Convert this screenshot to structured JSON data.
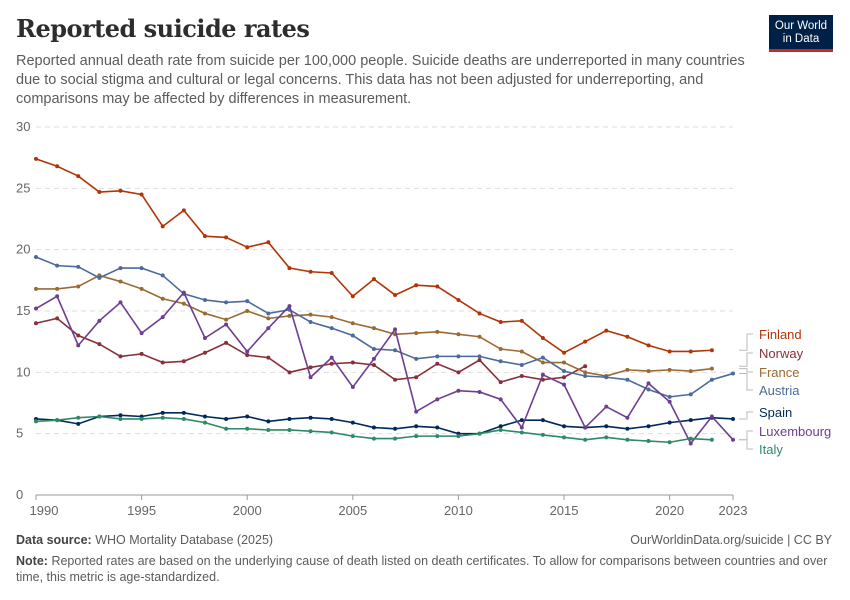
{
  "header": {
    "title": "Reported suicide rates",
    "subtitle": "Reported annual death rate from suicide per 100,000 people. Suicide deaths are underreported in many countries due to social stigma and cultural or legal concerns. This data has not been adjusted for underreporting, and comparisons may be affected by differences in measurement.",
    "logo_text": "Our World in Data"
  },
  "footer": {
    "source_label": "Data source:",
    "source": "WHO Mortality Database (2025)",
    "url": "OurWorldinData.org/suicide | CC BY",
    "note_label": "Note:",
    "note": "Reported rates are based on the underlying cause of death listed on death certificates. To allow for comparisons between countries and over time, this metric is age-standardized."
  },
  "chart_data": {
    "type": "line",
    "xlim": [
      1990,
      2023
    ],
    "ylim": [
      0,
      30
    ],
    "x_ticks": [
      "1990",
      "1995",
      "2000",
      "2005",
      "2010",
      "2015",
      "2020",
      "2023"
    ],
    "y_ticks": [
      "0",
      "5",
      "10",
      "15",
      "20",
      "25",
      "30"
    ],
    "grid": "horizontal dashed",
    "legend": "right, direct labels",
    "series": [
      {
        "name": "Finland",
        "color": "#B13507",
        "start": 1990,
        "values": [
          27.4,
          26.8,
          26.0,
          24.7,
          24.8,
          24.5,
          21.9,
          23.2,
          21.1,
          21.0,
          20.2,
          20.6,
          18.5,
          18.2,
          18.1,
          16.2,
          17.6,
          16.3,
          17.1,
          17.0,
          15.9,
          14.8,
          14.1,
          14.2,
          12.8,
          11.6,
          12.5,
          13.4,
          12.9,
          12.2,
          11.7,
          11.7,
          11.8
        ]
      },
      {
        "name": "Norway",
        "color": "#883039",
        "start": 1990,
        "values": [
          14.0,
          14.4,
          13.0,
          12.3,
          11.3,
          11.5,
          10.8,
          10.9,
          11.6,
          12.4,
          11.4,
          11.2,
          10.0,
          10.4,
          10.7,
          10.8,
          10.6,
          9.4,
          9.6,
          10.7,
          10.0,
          11.0,
          9.2,
          9.7,
          9.4,
          9.6,
          10.5
        ]
      },
      {
        "name": "France",
        "color": "#9A6A33",
        "start": 1990,
        "values": [
          16.8,
          16.8,
          17.0,
          17.9,
          17.4,
          16.8,
          16.0,
          15.6,
          14.8,
          14.3,
          15.0,
          14.4,
          14.6,
          14.7,
          14.5,
          14.0,
          13.6,
          13.1,
          13.2,
          13.3,
          13.1,
          12.9,
          11.9,
          11.7,
          10.8,
          10.8,
          10.0,
          9.7,
          10.2,
          10.1,
          10.2,
          10.1,
          10.3
        ]
      },
      {
        "name": "Austria",
        "color": "#4C6A9C",
        "start": 1990,
        "values": [
          19.4,
          18.7,
          18.6,
          17.7,
          18.5,
          18.5,
          17.9,
          16.4,
          15.9,
          15.7,
          15.8,
          14.8,
          15.1,
          14.1,
          13.6,
          13.0,
          11.9,
          11.8,
          11.1,
          11.3,
          11.3,
          11.3,
          10.9,
          10.6,
          11.2,
          10.1,
          9.7,
          9.6,
          9.4,
          8.6,
          8.0,
          8.2,
          9.4,
          9.9
        ]
      },
      {
        "name": "Spain",
        "color": "#00295B",
        "start": 1990,
        "values": [
          6.2,
          6.1,
          5.8,
          6.4,
          6.5,
          6.4,
          6.7,
          6.7,
          6.4,
          6.2,
          6.4,
          6.0,
          6.2,
          6.3,
          6.2,
          5.9,
          5.5,
          5.4,
          5.6,
          5.5,
          5.0,
          5.0,
          5.6,
          6.1,
          6.1,
          5.6,
          5.5,
          5.6,
          5.4,
          5.6,
          5.9,
          6.1,
          6.3,
          6.2
        ]
      },
      {
        "name": "Luxembourg",
        "color": "#6D3E91",
        "start": 1990,
        "values": [
          15.2,
          16.2,
          12.2,
          14.2,
          15.7,
          13.2,
          14.5,
          16.5,
          12.8,
          13.9,
          11.7,
          13.6,
          15.4,
          9.6,
          11.2,
          8.8,
          11.1,
          13.5,
          6.8,
          7.8,
          8.5,
          8.4,
          7.8,
          5.5,
          9.8,
          9.0,
          5.5,
          7.2,
          6.3,
          9.1,
          7.6,
          4.2,
          6.4,
          4.5
        ]
      },
      {
        "name": "Italy",
        "color": "#2E8A66",
        "start": 1990,
        "values": [
          6.0,
          6.1,
          6.3,
          6.4,
          6.2,
          6.2,
          6.3,
          6.2,
          5.9,
          5.4,
          5.4,
          5.3,
          5.3,
          5.2,
          5.1,
          4.8,
          4.6,
          4.6,
          4.8,
          4.8,
          4.8,
          5.0,
          5.3,
          5.1,
          4.9,
          4.7,
          4.5,
          4.7,
          4.5,
          4.4,
          4.3,
          4.6,
          4.5
        ]
      }
    ]
  }
}
